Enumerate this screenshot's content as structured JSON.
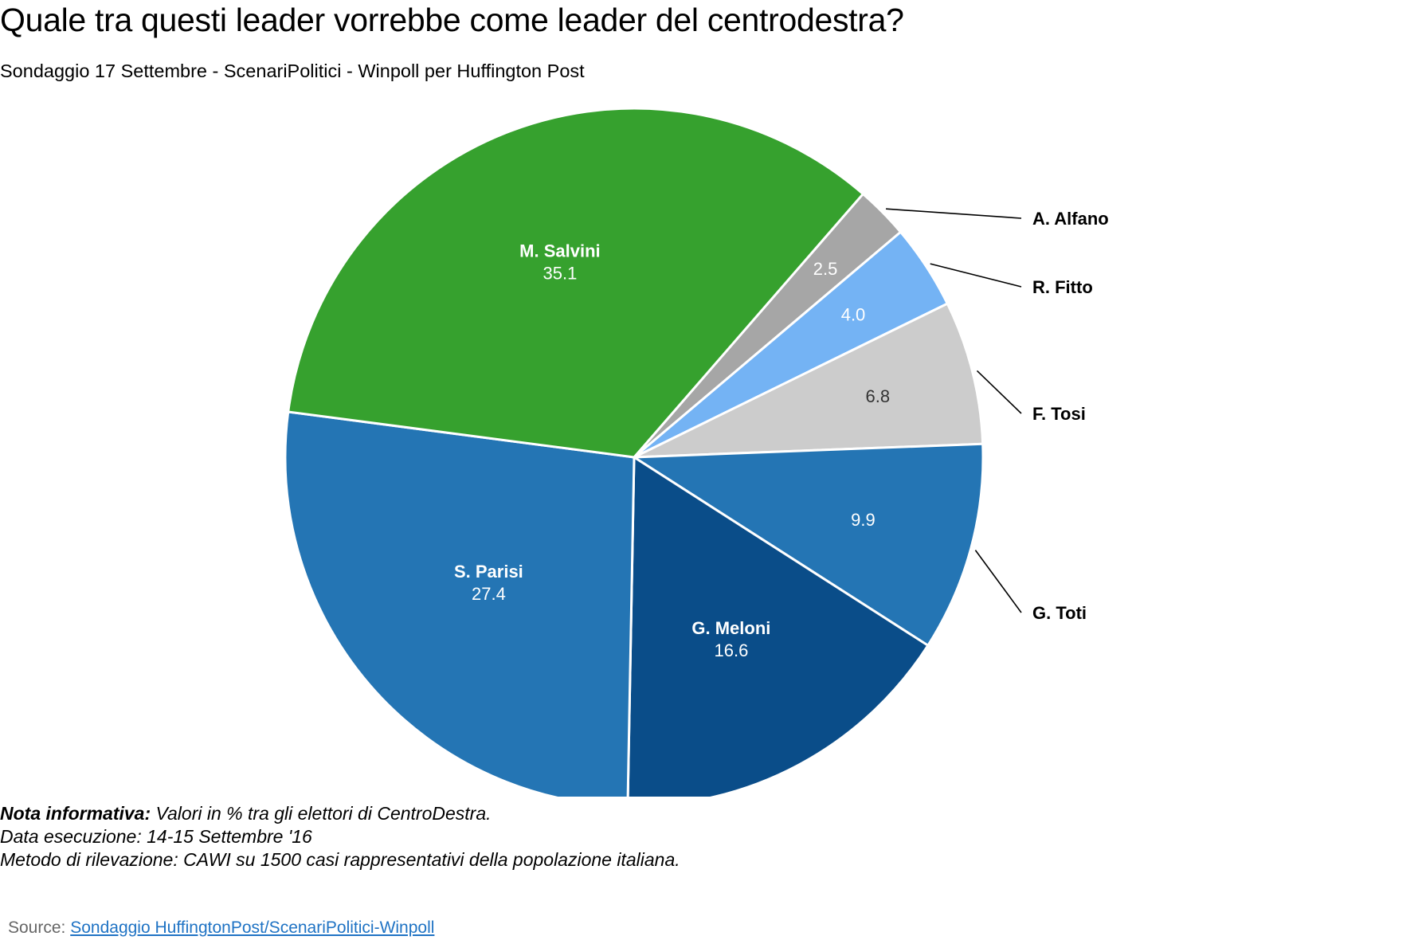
{
  "header": {
    "title": "Quale tra questi leader vorrebbe come leader del centrodestra?",
    "subtitle": "Sondaggio 17 Settembre - ScenariPolitici - Winpoll per Huffington Post"
  },
  "chart_data": {
    "type": "pie",
    "slices": [
      {
        "label": "A. Alfano",
        "value": 2.5,
        "value_label": "2.5",
        "color": "#a6a6a6",
        "label_position": "outside"
      },
      {
        "label": "R. Fitto",
        "value": 4.0,
        "value_label": "4.0",
        "color": "#74b3f4",
        "label_position": "outside"
      },
      {
        "label": "F. Tosi",
        "value": 6.8,
        "value_label": "6.8",
        "color": "#cccccc",
        "label_position": "outside"
      },
      {
        "label": "G. Toti",
        "value": 9.9,
        "value_label": "9.9",
        "color": "#2475b4",
        "label_position": "outside"
      },
      {
        "label": "G. Meloni",
        "value": 16.6,
        "value_label": "16.6",
        "color": "#0a4d89",
        "label_position": "inside"
      },
      {
        "label": "S. Parisi",
        "value": 27.4,
        "value_label": "27.4",
        "color": "#2475b4",
        "label_position": "inside"
      },
      {
        "label": "M. Salvini",
        "value": 35.1,
        "value_label": "35.1",
        "color": "#36a12e",
        "label_position": "inside"
      }
    ],
    "start_angle_deg": 41,
    "direction": "clockwise"
  },
  "notes": {
    "nota_label": "Nota informativa:",
    "nota_text": " Valori in % tra gli elettori di CentroDestra.",
    "data_esecuzione": "Data esecuzione: 14-15 Settembre '16",
    "metodo": "Metodo di rilevazione: CAWI su 1500 casi rappresentativi della popolazione italiana."
  },
  "source": {
    "prefix": "Source: ",
    "link_text": "Sondaggio HuffingtonPost/ScenariPolitici-Winpoll"
  }
}
